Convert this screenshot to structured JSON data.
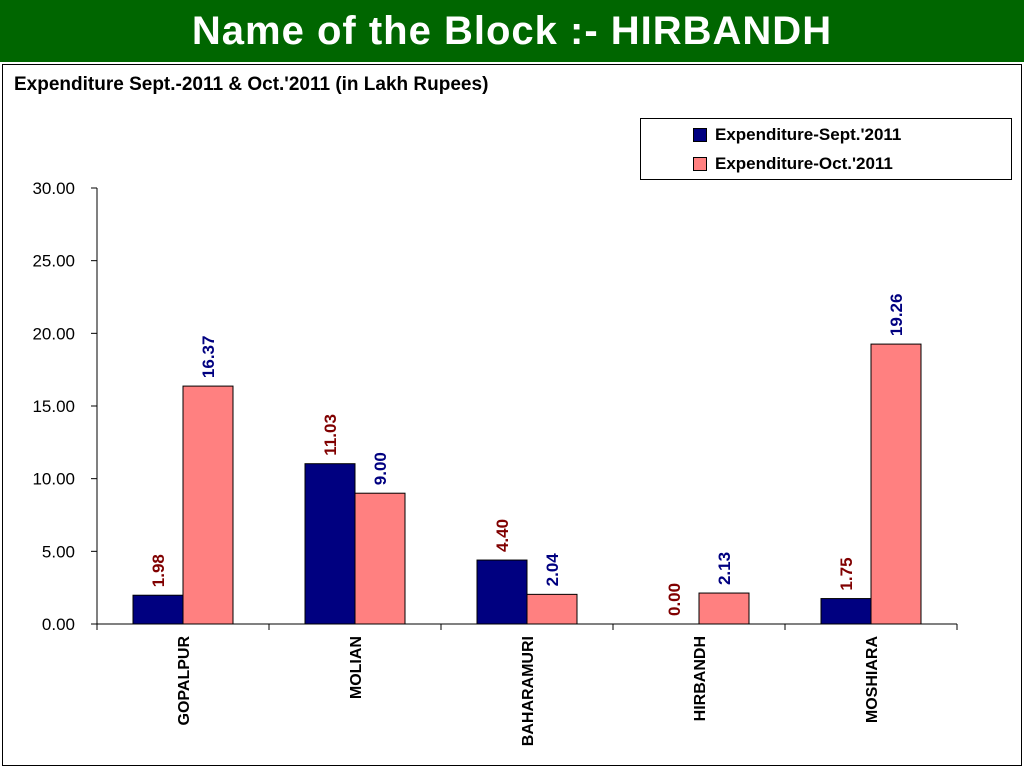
{
  "header": {
    "title": "Name of the Block :- HIRBANDH"
  },
  "colors": {
    "header_bg": "#006600",
    "series_sept": "#000080",
    "series_oct": "#FF8080",
    "label_sept": "#800000",
    "label_oct": "#000080"
  },
  "chart_data": {
    "type": "bar",
    "title": "Expenditure Sept.-2011 & Oct.'2011 (in Lakh Rupees)",
    "xlabel": "",
    "ylabel": "",
    "ylim": [
      0,
      30
    ],
    "yticks": [
      "0.00",
      "5.00",
      "10.00",
      "15.00",
      "20.00",
      "25.00",
      "30.00"
    ],
    "grid": false,
    "legend_position": "top-right",
    "categories": [
      "GOPALPUR",
      "MOLIAN",
      "BAHARAMURI",
      "HIRBANDH",
      "MOSHIARA"
    ],
    "series": [
      {
        "name": "Expenditure-Sept.'2011",
        "values": [
          1.98,
          11.03,
          4.4,
          0.0,
          1.75
        ],
        "labels": [
          "1.98",
          "11.03",
          "4.40",
          "0.00",
          "1.75"
        ]
      },
      {
        "name": "Expenditure-Oct.'2011",
        "values": [
          16.37,
          9.0,
          2.04,
          2.13,
          19.26
        ],
        "labels": [
          "16.37",
          "9.00",
          "2.04",
          "2.13",
          "19.26"
        ]
      }
    ]
  }
}
